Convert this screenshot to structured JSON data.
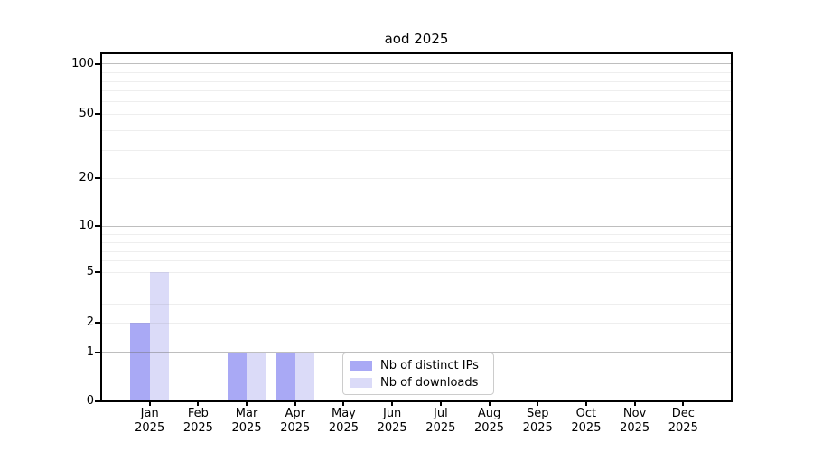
{
  "chart_data": {
    "type": "bar",
    "title": "aod 2025",
    "months": [
      "Jan",
      "Feb",
      "Mar",
      "Apr",
      "May",
      "Jun",
      "Jul",
      "Aug",
      "Sep",
      "Oct",
      "Nov",
      "Dec"
    ],
    "year_label": "2025",
    "series": [
      {
        "name": "Nb of distinct IPs",
        "color": "#a9a9f5",
        "values": [
          2,
          0,
          1,
          1,
          0,
          0,
          0,
          0,
          0,
          0,
          0,
          0
        ]
      },
      {
        "name": "Nb of downloads",
        "color": "#dbdbf8",
        "values": [
          5,
          0,
          1,
          1,
          0,
          0,
          0,
          0,
          0,
          0,
          0,
          0
        ]
      }
    ],
    "y_ticks": [
      0,
      1,
      2,
      5,
      10,
      20,
      50,
      100
    ],
    "y_scale": "symlog",
    "ylim": [
      0,
      130
    ],
    "xlabel": "",
    "ylabel": "",
    "grid": true,
    "legend_position": "lower center"
  },
  "colors": {
    "background": "#ffffff",
    "axis": "#000000",
    "major_gridline_values": [
      1,
      10,
      100
    ],
    "minor_gridline_values": [
      2,
      3,
      4,
      5,
      6,
      7,
      8,
      9,
      20,
      30,
      40,
      50,
      60,
      70,
      80,
      90
    ],
    "legend_border": "#cccccc"
  }
}
